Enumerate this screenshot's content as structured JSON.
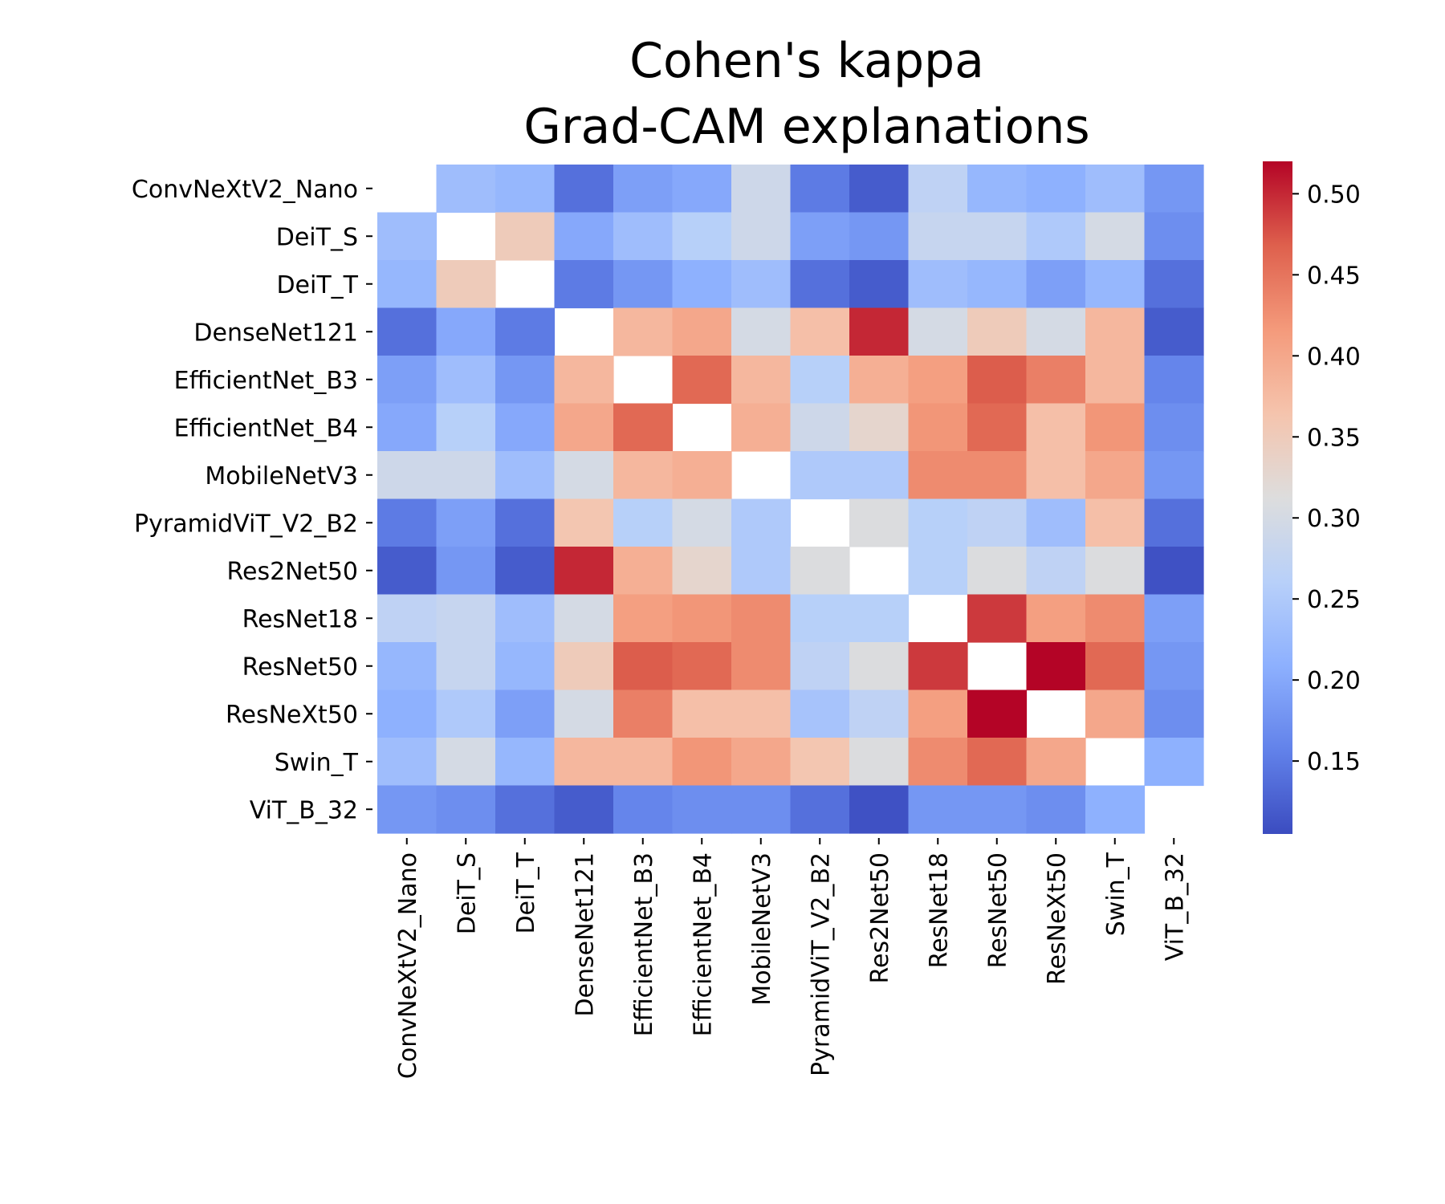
{
  "chart_data": {
    "type": "heatmap",
    "title": "Cohen's kappa",
    "subtitle": "Grad-CAM explanations",
    "xlabel": "",
    "ylabel": "",
    "labels": [
      "ConvNeXtV2_Nano",
      "DeiT_S",
      "DeiT_T",
      "DenseNet121",
      "EfficientNet_B3",
      "EfficientNet_B4",
      "MobileNetV3",
      "PyramidViT_V2_B2",
      "Res2Net50",
      "ResNet18",
      "ResNet50",
      "ResNeXt50",
      "Swin_T",
      "ViT_B_32"
    ],
    "values": [
      [
        null,
        0.23,
        0.22,
        0.14,
        0.19,
        0.2,
        0.29,
        0.15,
        0.12,
        0.27,
        0.22,
        0.21,
        0.23,
        0.18
      ],
      [
        0.23,
        null,
        0.35,
        0.2,
        0.23,
        0.26,
        0.29,
        0.19,
        0.18,
        0.28,
        0.28,
        0.25,
        0.3,
        0.17
      ],
      [
        0.22,
        0.35,
        null,
        0.15,
        0.18,
        0.21,
        0.23,
        0.14,
        0.12,
        0.23,
        0.22,
        0.19,
        0.22,
        0.14
      ],
      [
        0.14,
        0.2,
        0.15,
        null,
        0.38,
        0.4,
        0.3,
        0.37,
        0.5,
        0.3,
        0.35,
        0.3,
        0.38,
        0.12
      ],
      [
        0.19,
        0.23,
        0.18,
        0.38,
        null,
        0.46,
        0.38,
        0.26,
        0.39,
        0.41,
        0.47,
        0.44,
        0.38,
        0.16
      ],
      [
        0.2,
        0.26,
        0.2,
        0.4,
        0.46,
        null,
        0.39,
        0.29,
        0.33,
        0.42,
        0.46,
        0.37,
        0.42,
        0.17
      ],
      [
        0.29,
        0.29,
        0.23,
        0.3,
        0.38,
        0.39,
        null,
        0.25,
        0.25,
        0.43,
        0.43,
        0.37,
        0.4,
        0.18
      ],
      [
        0.15,
        0.19,
        0.14,
        0.36,
        0.26,
        0.3,
        0.25,
        null,
        0.31,
        0.26,
        0.27,
        0.23,
        0.37,
        0.14
      ],
      [
        0.12,
        0.18,
        0.12,
        0.5,
        0.39,
        0.33,
        0.25,
        0.31,
        null,
        0.26,
        0.31,
        0.27,
        0.31,
        0.11
      ],
      [
        0.27,
        0.28,
        0.23,
        0.3,
        0.41,
        0.42,
        0.43,
        0.26,
        0.26,
        null,
        0.49,
        0.41,
        0.43,
        0.19
      ],
      [
        0.22,
        0.28,
        0.22,
        0.35,
        0.47,
        0.46,
        0.43,
        0.27,
        0.31,
        0.49,
        null,
        0.52,
        0.46,
        0.18
      ],
      [
        0.21,
        0.25,
        0.19,
        0.3,
        0.44,
        0.37,
        0.37,
        0.24,
        0.27,
        0.41,
        0.52,
        null,
        0.4,
        0.17
      ],
      [
        0.23,
        0.3,
        0.22,
        0.38,
        0.38,
        0.42,
        0.4,
        0.36,
        0.31,
        0.43,
        0.46,
        0.4,
        null,
        0.21
      ],
      [
        0.18,
        0.17,
        0.14,
        0.12,
        0.16,
        0.17,
        0.17,
        0.14,
        0.11,
        0.18,
        0.18,
        0.17,
        0.21,
        null
      ]
    ],
    "colormap": "coolwarm",
    "vmin": 0.105,
    "vmax": 0.52,
    "colorbar_ticks": [
      "0.15",
      "0.20",
      "0.25",
      "0.30",
      "0.35",
      "0.40",
      "0.45",
      "0.50"
    ],
    "grid": false,
    "legend": "colorbar right"
  }
}
